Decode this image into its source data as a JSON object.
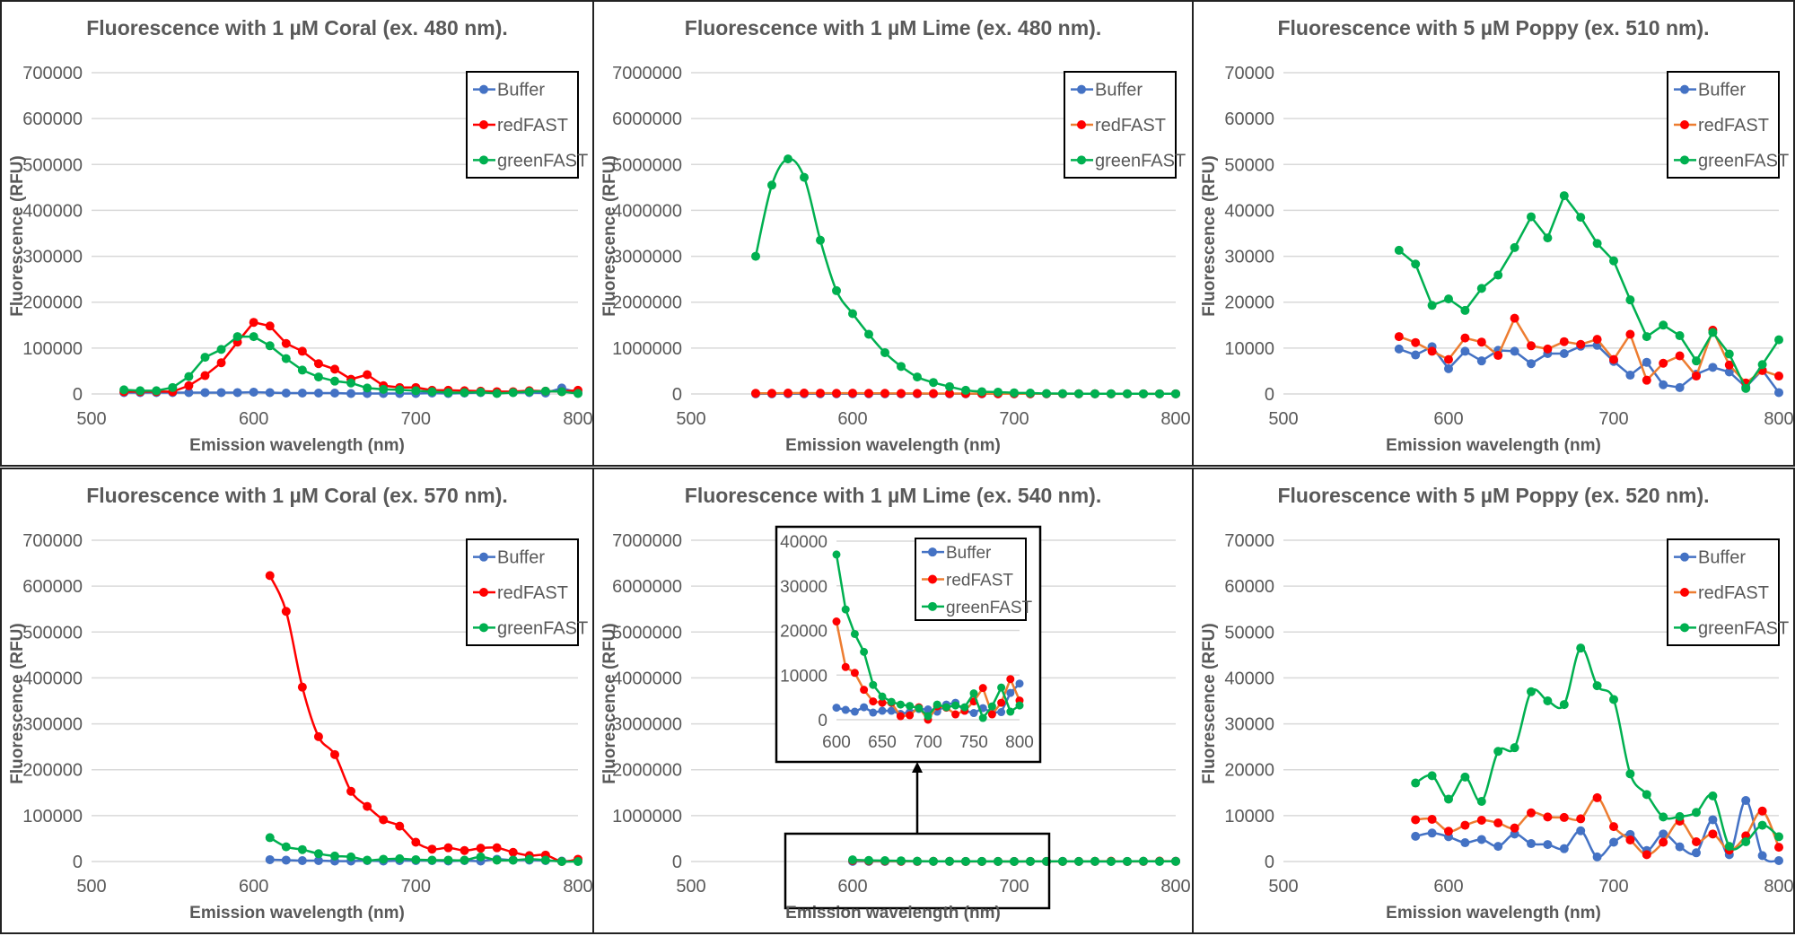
{
  "colors": {
    "Buffer": "#4472C4",
    "redFAST_marker": "#FF0000",
    "redFAST_line_red": "#FF0000",
    "redFAST_line_orange": "#ED7D31",
    "greenFAST": "#00B050",
    "grid": "#D9D9D9"
  },
  "chart_data": [
    {
      "type": "line",
      "title": "Fluorescence with 1 µM Coral (ex. 480 nm).",
      "xlabel": "Emission wavelength (nm)",
      "ylabel": "Fluorescence (RFU)",
      "xlim": [
        500,
        800
      ],
      "xticks": [
        500,
        600,
        700,
        800
      ],
      "ylim": [
        0,
        700000
      ],
      "yticks": [
        0,
        100000,
        200000,
        300000,
        400000,
        500000,
        600000,
        700000
      ],
      "grid": true,
      "legend": "top-right",
      "smooth": false,
      "red_line": "red",
      "x": [
        520,
        530,
        540,
        550,
        560,
        570,
        580,
        590,
        600,
        610,
        620,
        630,
        640,
        650,
        660,
        670,
        680,
        690,
        700,
        710,
        720,
        730,
        740,
        750,
        760,
        770,
        780,
        790,
        800
      ],
      "series": [
        {
          "name": "Buffer",
          "values": [
            3000,
            3000,
            3000,
            3000,
            3000,
            3000,
            3000,
            3000,
            4000,
            3000,
            2000,
            2000,
            2000,
            2000,
            1000,
            1000,
            1000,
            1000,
            1000,
            2000,
            1000,
            2000,
            3000,
            3000,
            3000,
            3000,
            2000,
            13000,
            3000
          ]
        },
        {
          "name": "redFAST",
          "values": [
            5000,
            5000,
            5000,
            5000,
            18000,
            40000,
            68000,
            113000,
            156000,
            148000,
            110000,
            93000,
            66000,
            54000,
            32000,
            42000,
            18000,
            14000,
            14000,
            8000,
            8000,
            7000,
            6000,
            5000,
            5000,
            7000,
            6000,
            5000,
            8000
          ]
        },
        {
          "name": "greenFAST",
          "values": [
            9000,
            7000,
            7000,
            14000,
            38000,
            80000,
            97000,
            125000,
            125000,
            105000,
            77000,
            52000,
            37000,
            28000,
            24000,
            13000,
            10000,
            9000,
            7000,
            5000,
            3000,
            3000,
            4000,
            1000,
            3000,
            5000,
            6000,
            5000,
            1000
          ]
        }
      ]
    },
    {
      "type": "line",
      "title": "Fluorescence with 1 µM Lime (ex. 480 nm).",
      "xlabel": "Emission wavelength (nm)",
      "ylabel": "Fluorescence (RFU)",
      "xlim": [
        500,
        800
      ],
      "xticks": [
        500,
        600,
        700,
        800
      ],
      "ylim": [
        0,
        7000000
      ],
      "yticks": [
        0,
        1000000,
        2000000,
        3000000,
        4000000,
        5000000,
        6000000,
        7000000
      ],
      "grid": true,
      "legend": "top-right",
      "smooth": true,
      "red_line": "orange",
      "x": [
        540,
        550,
        560,
        570,
        580,
        590,
        600,
        610,
        620,
        630,
        640,
        650,
        660,
        670,
        680,
        690,
        700,
        710,
        720,
        730,
        740,
        750,
        760,
        770,
        780,
        790,
        800
      ],
      "series": [
        {
          "name": "Buffer",
          "values": [
            3000,
            3000,
            3000,
            3000,
            3000,
            3000,
            3000,
            3000,
            3000,
            3000,
            3000,
            3000,
            3000,
            3000,
            3000,
            3000,
            3000,
            3000,
            3000,
            3000,
            3000,
            3000,
            3000,
            3000,
            3000,
            3000,
            3000
          ]
        },
        {
          "name": "redFAST",
          "values": [
            15000,
            15000,
            20000,
            20000,
            18000,
            15000,
            18000,
            15000,
            15000,
            12000,
            12000,
            10000,
            10000,
            8000,
            8000,
            6000,
            5000,
            5000,
            5000,
            4000,
            4000,
            4000,
            3000,
            3000,
            3000,
            3000,
            3000
          ]
        },
        {
          "name": "greenFAST",
          "values": [
            3000000,
            4550000,
            5120000,
            4720000,
            3350000,
            2250000,
            1750000,
            1300000,
            900000,
            600000,
            370000,
            250000,
            160000,
            80000,
            50000,
            40000,
            25000,
            20000,
            10000,
            8000,
            5000,
            5000,
            4000,
            4000,
            3000,
            3000,
            3000
          ]
        }
      ]
    },
    {
      "type": "line",
      "title": "Fluorescence with 5 µM Poppy (ex. 510 nm).",
      "xlabel": "Emission wavelength (nm)",
      "ylabel": "Fluorescence (RFU)",
      "xlim": [
        500,
        800
      ],
      "xticks": [
        500,
        600,
        700,
        800
      ],
      "ylim": [
        0,
        70000
      ],
      "yticks": [
        0,
        10000,
        20000,
        30000,
        40000,
        50000,
        60000,
        70000
      ],
      "grid": true,
      "legend": "top-right",
      "smooth": false,
      "red_line": "orange",
      "x": [
        570,
        580,
        590,
        600,
        610,
        620,
        630,
        640,
        650,
        660,
        670,
        680,
        690,
        700,
        710,
        720,
        730,
        740,
        750,
        760,
        770,
        780,
        790,
        800
      ],
      "series": [
        {
          "name": "Buffer",
          "values": [
            9800,
            8500,
            10300,
            5500,
            9300,
            7200,
            9500,
            9300,
            6600,
            8800,
            8800,
            10400,
            10600,
            7100,
            4100,
            6900,
            2000,
            1400,
            4300,
            5800,
            4800,
            1500,
            5200,
            300
          ]
        },
        {
          "name": "redFAST",
          "values": [
            12500,
            11200,
            9300,
            7500,
            12200,
            11300,
            8400,
            16500,
            10500,
            9800,
            11400,
            10800,
            11900,
            7500,
            13000,
            3000,
            6700,
            8300,
            3900,
            13900,
            6300,
            2400,
            5100,
            3900
          ]
        },
        {
          "name": "greenFAST",
          "values": [
            31300,
            28300,
            19300,
            20700,
            18200,
            23000,
            25900,
            31900,
            38600,
            34000,
            43200,
            38500,
            32800,
            29000,
            20500,
            12500,
            15000,
            12700,
            7200,
            13400,
            8700,
            1200,
            6400,
            11800
          ]
        }
      ]
    },
    {
      "type": "line",
      "title": "Fluorescence with 1 µM Coral (ex. 570 nm).",
      "xlabel": "Emission wavelength (nm)",
      "ylabel": "Fluorescence (RFU)",
      "xlim": [
        500,
        800
      ],
      "xticks": [
        500,
        600,
        700,
        800
      ],
      "ylim": [
        0,
        700000
      ],
      "yticks": [
        0,
        100000,
        200000,
        300000,
        400000,
        500000,
        600000,
        700000
      ],
      "grid": true,
      "legend": "top-right",
      "smooth": true,
      "red_line": "red",
      "x": [
        610,
        620,
        630,
        640,
        650,
        660,
        670,
        680,
        690,
        700,
        710,
        720,
        730,
        740,
        750,
        760,
        770,
        780,
        790,
        800
      ],
      "series": [
        {
          "name": "Buffer",
          "values": [
            4000,
            3000,
            2000,
            2000,
            1000,
            1000,
            2000,
            1000,
            2000,
            2000,
            2000,
            1000,
            2000,
            1000,
            5000,
            3000,
            3000,
            2000,
            1000,
            1000
          ]
        },
        {
          "name": "redFAST",
          "values": [
            623000,
            545000,
            380000,
            272000,
            233000,
            153000,
            120000,
            91000,
            77000,
            42000,
            27000,
            30000,
            24000,
            29000,
            30000,
            20000,
            13000,
            14000,
            0,
            5000
          ]
        },
        {
          "name": "greenFAST",
          "values": [
            52000,
            32000,
            26000,
            17000,
            12000,
            10000,
            3000,
            5000,
            6000,
            4000,
            3000,
            3000,
            3000,
            10000,
            3000,
            3000,
            5000,
            3000,
            0,
            0
          ]
        }
      ]
    },
    {
      "type": "line",
      "title": "Fluorescence with 1 µM Lime (ex. 540 nm).",
      "xlabel": "Emission wavelength (nm)",
      "ylabel": "Fluorescence (RFU)",
      "xlim": [
        500,
        800
      ],
      "xticks": [
        500,
        600,
        700,
        800
      ],
      "ylim": [
        0,
        7000000
      ],
      "yticks": [
        0,
        1000000,
        2000000,
        3000000,
        4000000,
        5000000,
        6000000,
        7000000
      ],
      "grid": true,
      "legend": "top-right (inset)",
      "smooth": false,
      "red_line": "orange",
      "inset": {
        "xlim": [
          600,
          800
        ],
        "xticks": [
          600,
          650,
          700,
          750,
          800
        ],
        "ylim": [
          0,
          40000
        ],
        "yticks": [
          0,
          10000,
          20000,
          30000,
          40000
        ]
      },
      "x": [
        600,
        610,
        620,
        630,
        640,
        650,
        660,
        670,
        680,
        690,
        700,
        710,
        720,
        730,
        740,
        750,
        760,
        770,
        780,
        790,
        800
      ],
      "series": [
        {
          "name": "Buffer",
          "values": [
            2700,
            2200,
            1800,
            2800,
            1600,
            2000,
            2000,
            1300,
            1700,
            2400,
            2300,
            1800,
            3400,
            3800,
            2000,
            1500,
            2600,
            1600,
            1700,
            6000,
            8100
          ]
        },
        {
          "name": "redFAST",
          "values": [
            22000,
            11800,
            10500,
            6700,
            4100,
            3800,
            3800,
            800,
            1000,
            2800,
            0,
            3000,
            2700,
            1200,
            2000,
            4100,
            7100,
            1200,
            3800,
            9100,
            4300
          ]
        },
        {
          "name": "greenFAST",
          "values": [
            37000,
            24700,
            19200,
            15200,
            7800,
            5200,
            4000,
            3400,
            3100,
            2600,
            800,
            3400,
            2800,
            3200,
            2800,
            5900,
            400,
            3000,
            7200,
            1800,
            3200
          ]
        }
      ]
    },
    {
      "type": "line",
      "title": "Fluorescence with 5 µM Poppy (ex. 520 nm).",
      "xlabel": "Emission wavelength (nm)",
      "ylabel": "Fluorescence (RFU)",
      "xlim": [
        500,
        800
      ],
      "xticks": [
        500,
        600,
        700,
        800
      ],
      "ylim": [
        0,
        70000
      ],
      "yticks": [
        0,
        10000,
        20000,
        30000,
        40000,
        50000,
        60000,
        70000
      ],
      "grid": true,
      "legend": "top-right",
      "smooth": true,
      "red_line": "orange",
      "x": [
        580,
        590,
        600,
        610,
        620,
        630,
        640,
        650,
        660,
        670,
        680,
        690,
        700,
        710,
        720,
        730,
        740,
        750,
        760,
        770,
        780,
        790,
        800
      ],
      "series": [
        {
          "name": "Buffer",
          "values": [
            5500,
            6200,
            5400,
            4100,
            4800,
            3300,
            6000,
            3900,
            3700,
            2800,
            6700,
            1000,
            4200,
            5900,
            2400,
            6000,
            3200,
            1900,
            9100,
            1500,
            13300,
            1300,
            200
          ]
        },
        {
          "name": "redFAST",
          "values": [
            9100,
            9200,
            6600,
            7900,
            9000,
            8400,
            7300,
            10600,
            9700,
            9600,
            9300,
            13900,
            7600,
            4700,
            1500,
            4200,
            8800,
            4300,
            6000,
            2500,
            5600,
            11000,
            3100
          ]
        },
        {
          "name": "greenFAST",
          "values": [
            17100,
            18700,
            13600,
            18400,
            13100,
            24000,
            24800,
            37000,
            35000,
            34200,
            46500,
            38300,
            35300,
            19100,
            14600,
            9700,
            9800,
            10700,
            14300,
            3300,
            4300,
            7900,
            5400
          ]
        }
      ]
    }
  ]
}
